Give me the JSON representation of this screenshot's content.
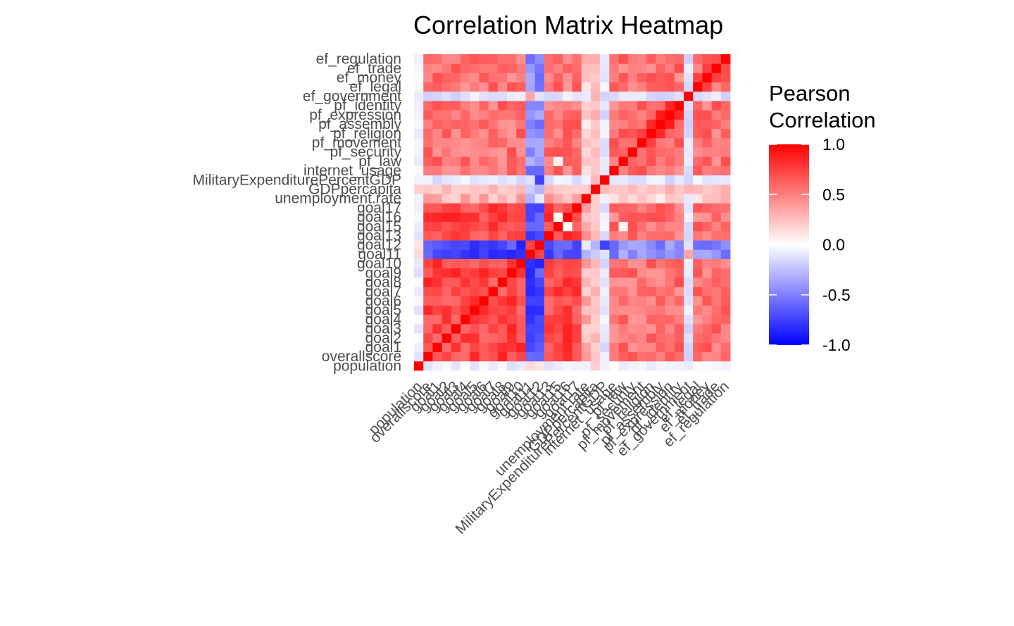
{
  "chart_data": {
    "type": "heatmap",
    "title": "Correlation Matrix Heatmap",
    "variables": [
      "population",
      "overallscore",
      "goal1",
      "goal2",
      "goal3",
      "goal4",
      "goal5",
      "goal6",
      "goal7",
      "goal8",
      "goal9",
      "goal10",
      "goal11",
      "goal12",
      "goal13",
      "goal15",
      "goal16",
      "goal17",
      "unemployment.rate",
      "GDPpercapita",
      "MilitaryExpenditurePercentGDP",
      "internet_usage",
      "pf_law",
      "pf_security",
      "pf_movement",
      "pf_religion",
      "pf_assembly",
      "pf_expression",
      "pf_identity",
      "ef_government",
      "ef_legal",
      "ef_money",
      "ef_trade",
      "ef_regulation"
    ],
    "legend": {
      "title_lines": [
        "Pearson",
        "Correlation"
      ],
      "position": "right",
      "ticks": [
        1.0,
        0.5,
        0.0,
        -0.5,
        -1.0
      ],
      "tick_labels": [
        "1.0",
        "0.5",
        "0.0",
        "-0.5",
        "-1.0"
      ],
      "limits": [
        -1,
        1
      ],
      "colors": {
        "low": "#0000ff",
        "mid": "#ffffff",
        "high": "#ff0000"
      }
    },
    "grid": true,
    "groups": {
      "sdg": [
        1,
        2,
        3,
        4,
        5,
        6,
        7,
        8,
        9,
        10,
        11,
        14,
        15,
        16,
        17
      ],
      "free": [
        21,
        22,
        23,
        24,
        25,
        26,
        27,
        28,
        30,
        31,
        32,
        33
      ],
      "neg": [
        12,
        13
      ],
      "weak": [
        0,
        18,
        19,
        20,
        29
      ]
    },
    "group_corr": {
      "sdg_sdg": 0.72,
      "sdg_free": 0.55,
      "free_free": 0.55,
      "neg_sdg": -0.72,
      "neg_free": -0.45,
      "neg_neg": 0.85,
      "sdg_weak": 0.3,
      "free_weak": 0.2,
      "weak_weak": 0.05,
      "neg_weak": -0.15
    },
    "overrides": [
      {
        "row": 29,
        "col": "*",
        "value": -0.12
      },
      {
        "row": 0,
        "col": "*",
        "value": -0.05
      },
      {
        "row": 20,
        "col": "*",
        "value": -0.1
      },
      {
        "row": 19,
        "col": "*",
        "value": 0.25
      },
      {
        "row": 12,
        "col": 0,
        "value": 0.15
      },
      {
        "row": 13,
        "col": 0,
        "value": 0.1
      },
      {
        "row": 12,
        "col": 19,
        "value": -0.2
      },
      {
        "row": 13,
        "col": 20,
        "value": -0.75
      },
      {
        "row": 13,
        "col": 19,
        "value": -0.3
      },
      {
        "row": 12,
        "col": 29,
        "value": 0.35
      },
      {
        "row": 18,
        "col": 12,
        "value": -0.3
      },
      {
        "row": 16,
        "col": 15,
        "value": 0.0
      },
      {
        "row": 15,
        "col": 22,
        "value": 0.05
      },
      {
        "row": 26,
        "col": 27,
        "value": 0.9
      },
      {
        "row": 25,
        "col": 26,
        "value": 0.85
      },
      {
        "row": 27,
        "col": 28,
        "value": 0.85
      },
      {
        "row": 24,
        "col": 25,
        "value": 0.75
      },
      {
        "row": 30,
        "col": 31,
        "value": 0.75
      },
      {
        "row": 31,
        "col": 32,
        "value": 0.75
      },
      {
        "row": 32,
        "col": 33,
        "value": 0.7
      }
    ]
  }
}
